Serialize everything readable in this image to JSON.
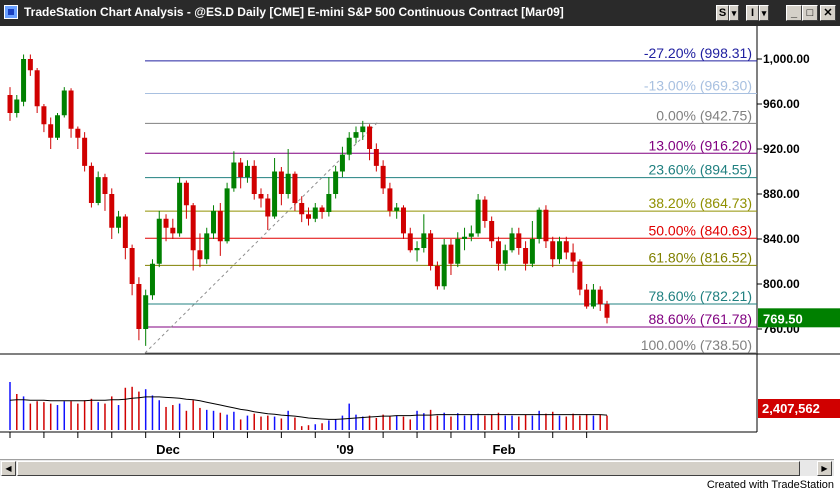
{
  "window": {
    "title": "TradeStation Chart Analysis - @ES.D  Daily  [CME] E-mini S&P 500 Continuous Contract [Mar09]",
    "buttons": {
      "s_label": "S",
      "i_label": "I",
      "dropdown_glyph": "▾",
      "minimize": "_",
      "maximize": "□",
      "close": "✕"
    },
    "icon": "chart-app-icon"
  },
  "footer": {
    "text": "Created with TradeStation"
  },
  "chart_data": {
    "type": "candlestick",
    "price_axis": {
      "ticks": [
        "1,000.00",
        "960.00",
        "920.00",
        "880.00",
        "840.00",
        "800.00",
        "760.00"
      ],
      "ylim": [
        738.5,
        1010
      ]
    },
    "volume_axis": {},
    "x_labels": [
      "Dec",
      "'09",
      "Feb"
    ],
    "fib_levels": [
      {
        "pct": "-27.20%",
        "price": "998.31",
        "color": "#2020a0",
        "label": "-27.20% (998.31)"
      },
      {
        "pct": "-13.00%",
        "price": "969.30",
        "color": "#a8c0e0",
        "label": "-13.00% (969.30)"
      },
      {
        "pct": "0.00%",
        "price": "942.75",
        "color": "#808080",
        "label": "0.00% (942.75)"
      },
      {
        "pct": "13.00%",
        "price": "916.20",
        "color": "#800080",
        "label": "13.00% (916.20)"
      },
      {
        "pct": "23.60%",
        "price": "894.55",
        "color": "#208080",
        "label": "23.60% (894.55)"
      },
      {
        "pct": "38.20%",
        "price": "864.73",
        "color": "#909000",
        "label": "38.20% (864.73)"
      },
      {
        "pct": "50.00%",
        "price": "840.63",
        "color": "#e00000",
        "label": "50.00% (840.63)"
      },
      {
        "pct": "61.80%",
        "price": "816.52",
        "color": "#808000",
        "label": "61.80% (816.52)"
      },
      {
        "pct": "78.60%",
        "price": "782.21",
        "color": "#208080",
        "label": "78.60% (782.21)"
      },
      {
        "pct": "88.60%",
        "price": "761.78",
        "color": "#800080",
        "label": "88.60% (761.78)"
      },
      {
        "pct": "100.00%",
        "price": "738.50",
        "color": "#808080",
        "label": "100.00% (738.50)"
      }
    ],
    "last_price": {
      "label": "769.50",
      "value": 769.5,
      "color": "#008000"
    },
    "last_volume": {
      "label": "2,407,562",
      "color": "#d00000"
    },
    "candles": [
      [
        968,
        952,
        975,
        945
      ],
      [
        952,
        964,
        968,
        948
      ],
      [
        962,
        1000,
        1004,
        958
      ],
      [
        1000,
        990,
        1004,
        985
      ],
      [
        990,
        958,
        992,
        952
      ],
      [
        958,
        942,
        960,
        935
      ],
      [
        942,
        930,
        948,
        920
      ],
      [
        930,
        950,
        952,
        928
      ],
      [
        950,
        972,
        975,
        948
      ],
      [
        972,
        938,
        974,
        930
      ],
      [
        938,
        930,
        940,
        920
      ],
      [
        930,
        905,
        935,
        900
      ],
      [
        905,
        872,
        908,
        868
      ],
      [
        872,
        895,
        900,
        870
      ],
      [
        895,
        880,
        898,
        865
      ],
      [
        880,
        850,
        885,
        840
      ],
      [
        850,
        860,
        865,
        845
      ],
      [
        860,
        832,
        862,
        822
      ],
      [
        832,
        800,
        835,
        790
      ],
      [
        800,
        760,
        806,
        750
      ],
      [
        760,
        790,
        795,
        745
      ],
      [
        790,
        818,
        822,
        786
      ],
      [
        818,
        858,
        865,
        815
      ],
      [
        858,
        850,
        862,
        838
      ],
      [
        850,
        845,
        858,
        840
      ],
      [
        845,
        890,
        895,
        842
      ],
      [
        890,
        870,
        892,
        858
      ],
      [
        870,
        830,
        872,
        812
      ],
      [
        830,
        822,
        845,
        815
      ],
      [
        822,
        845,
        850,
        818
      ],
      [
        845,
        865,
        870,
        840
      ],
      [
        865,
        838,
        872,
        825
      ],
      [
        838,
        885,
        890,
        836
      ],
      [
        885,
        908,
        918,
        882
      ],
      [
        908,
        895,
        912,
        885
      ],
      [
        895,
        905,
        910,
        890
      ],
      [
        905,
        880,
        910,
        875
      ],
      [
        880,
        876,
        885,
        868
      ],
      [
        876,
        860,
        880,
        848
      ],
      [
        860,
        900,
        912,
        858
      ],
      [
        900,
        880,
        904,
        870
      ],
      [
        880,
        898,
        920,
        876
      ],
      [
        898,
        872,
        900,
        865
      ],
      [
        872,
        862,
        878,
        855
      ],
      [
        862,
        858,
        868,
        852
      ],
      [
        858,
        868,
        872,
        855
      ],
      [
        868,
        864,
        870,
        858
      ],
      [
        864,
        880,
        895,
        860
      ],
      [
        880,
        900,
        905,
        876
      ],
      [
        900,
        915,
        922,
        895
      ],
      [
        915,
        930,
        935,
        910
      ],
      [
        930,
        935,
        940,
        925
      ],
      [
        935,
        940,
        945,
        928
      ],
      [
        940,
        920,
        942,
        910
      ],
      [
        920,
        905,
        925,
        900
      ],
      [
        905,
        885,
        910,
        880
      ],
      [
        885,
        865,
        890,
        860
      ],
      [
        865,
        868,
        872,
        858
      ],
      [
        868,
        845,
        870,
        840
      ],
      [
        845,
        830,
        850,
        828
      ],
      [
        830,
        832,
        838,
        820
      ],
      [
        832,
        845,
        862,
        828
      ],
      [
        845,
        816,
        848,
        812
      ],
      [
        816,
        798,
        820,
        795
      ],
      [
        798,
        835,
        840,
        795
      ],
      [
        835,
        818,
        840,
        808
      ],
      [
        818,
        840,
        846,
        815
      ],
      [
        840,
        842,
        850,
        830
      ],
      [
        842,
        845,
        852,
        838
      ],
      [
        845,
        875,
        880,
        842
      ],
      [
        875,
        856,
        878,
        850
      ],
      [
        856,
        838,
        860,
        832
      ],
      [
        838,
        818,
        842,
        812
      ],
      [
        818,
        830,
        835,
        812
      ],
      [
        830,
        845,
        850,
        828
      ],
      [
        845,
        832,
        850,
        826
      ],
      [
        832,
        818,
        838,
        812
      ],
      [
        818,
        840,
        856,
        815
      ],
      [
        840,
        866,
        868,
        836
      ],
      [
        866,
        838,
        870,
        832
      ],
      [
        838,
        822,
        842,
        815
      ],
      [
        822,
        838,
        842,
        818
      ],
      [
        838,
        828,
        842,
        822
      ],
      [
        828,
        820,
        836,
        810
      ],
      [
        820,
        795,
        822,
        790
      ],
      [
        795,
        780,
        800,
        778
      ],
      [
        780,
        795,
        800,
        778
      ],
      [
        795,
        782,
        798,
        776
      ],
      [
        782,
        770,
        785,
        765
      ]
    ],
    "volumes": [
      [
        1.0,
        "up"
      ],
      [
        0.75,
        "down"
      ],
      [
        0.7,
        "up"
      ],
      [
        0.55,
        "down"
      ],
      [
        0.6,
        "down"
      ],
      [
        0.58,
        "down"
      ],
      [
        0.55,
        "down"
      ],
      [
        0.52,
        "up"
      ],
      [
        0.6,
        "up"
      ],
      [
        0.6,
        "down"
      ],
      [
        0.55,
        "down"
      ],
      [
        0.62,
        "down"
      ],
      [
        0.65,
        "down"
      ],
      [
        0.58,
        "up"
      ],
      [
        0.55,
        "down"
      ],
      [
        0.7,
        "down"
      ],
      [
        0.52,
        "up"
      ],
      [
        0.88,
        "down"
      ],
      [
        0.9,
        "down"
      ],
      [
        0.8,
        "down"
      ],
      [
        0.85,
        "up"
      ],
      [
        0.72,
        "up"
      ],
      [
        0.62,
        "up"
      ],
      [
        0.48,
        "down"
      ],
      [
        0.52,
        "down"
      ],
      [
        0.55,
        "up"
      ],
      [
        0.4,
        "down"
      ],
      [
        0.62,
        "down"
      ],
      [
        0.46,
        "down"
      ],
      [
        0.42,
        "up"
      ],
      [
        0.4,
        "up"
      ],
      [
        0.36,
        "down"
      ],
      [
        0.32,
        "up"
      ],
      [
        0.38,
        "up"
      ],
      [
        0.22,
        "down"
      ],
      [
        0.3,
        "up"
      ],
      [
        0.34,
        "down"
      ],
      [
        0.28,
        "down"
      ],
      [
        0.3,
        "down"
      ],
      [
        0.28,
        "up"
      ],
      [
        0.24,
        "down"
      ],
      [
        0.4,
        "up"
      ],
      [
        0.26,
        "down"
      ],
      [
        0.08,
        "down"
      ],
      [
        0.1,
        "down"
      ],
      [
        0.12,
        "up"
      ],
      [
        0.14,
        "down"
      ],
      [
        0.2,
        "up"
      ],
      [
        0.22,
        "up"
      ],
      [
        0.3,
        "up"
      ],
      [
        0.55,
        "up"
      ],
      [
        0.32,
        "up"
      ],
      [
        0.28,
        "up"
      ],
      [
        0.3,
        "down"
      ],
      [
        0.25,
        "down"
      ],
      [
        0.32,
        "down"
      ],
      [
        0.28,
        "down"
      ],
      [
        0.3,
        "up"
      ],
      [
        0.28,
        "down"
      ],
      [
        0.22,
        "down"
      ],
      [
        0.4,
        "up"
      ],
      [
        0.35,
        "up"
      ],
      [
        0.42,
        "down"
      ],
      [
        0.3,
        "down"
      ],
      [
        0.36,
        "up"
      ],
      [
        0.28,
        "down"
      ],
      [
        0.35,
        "up"
      ],
      [
        0.3,
        "up"
      ],
      [
        0.32,
        "up"
      ],
      [
        0.34,
        "up"
      ],
      [
        0.3,
        "down"
      ],
      [
        0.32,
        "down"
      ],
      [
        0.36,
        "down"
      ],
      [
        0.3,
        "up"
      ],
      [
        0.3,
        "up"
      ],
      [
        0.28,
        "down"
      ],
      [
        0.32,
        "down"
      ],
      [
        0.3,
        "up"
      ],
      [
        0.4,
        "up"
      ],
      [
        0.34,
        "down"
      ],
      [
        0.38,
        "down"
      ],
      [
        0.3,
        "up"
      ],
      [
        0.28,
        "down"
      ],
      [
        0.34,
        "down"
      ],
      [
        0.3,
        "down"
      ],
      [
        0.33,
        "down"
      ],
      [
        0.3,
        "up"
      ],
      [
        0.32,
        "down"
      ],
      [
        0.3,
        "down"
      ]
    ],
    "volume_ma": [
      0.62,
      0.63,
      0.63,
      0.62,
      0.62,
      0.62,
      0.61,
      0.61,
      0.61,
      0.61,
      0.61,
      0.61,
      0.62,
      0.62,
      0.62,
      0.63,
      0.63,
      0.64,
      0.66,
      0.67,
      0.69,
      0.69,
      0.69,
      0.68,
      0.67,
      0.66,
      0.64,
      0.63,
      0.61,
      0.58,
      0.55,
      0.52,
      0.49,
      0.46,
      0.43,
      0.41,
      0.38,
      0.36,
      0.34,
      0.33,
      0.31,
      0.3,
      0.29,
      0.27,
      0.25,
      0.24,
      0.23,
      0.22,
      0.22,
      0.23,
      0.24,
      0.25,
      0.26,
      0.27,
      0.28,
      0.29,
      0.29,
      0.3,
      0.3,
      0.3,
      0.31,
      0.31,
      0.31,
      0.32,
      0.32,
      0.32,
      0.32,
      0.32,
      0.32,
      0.32,
      0.32,
      0.32,
      0.32,
      0.32,
      0.32,
      0.32,
      0.32,
      0.32,
      0.32,
      0.32,
      0.32,
      0.32,
      0.32,
      0.32,
      0.32,
      0.32,
      0.32,
      0.32,
      0.31
    ]
  }
}
